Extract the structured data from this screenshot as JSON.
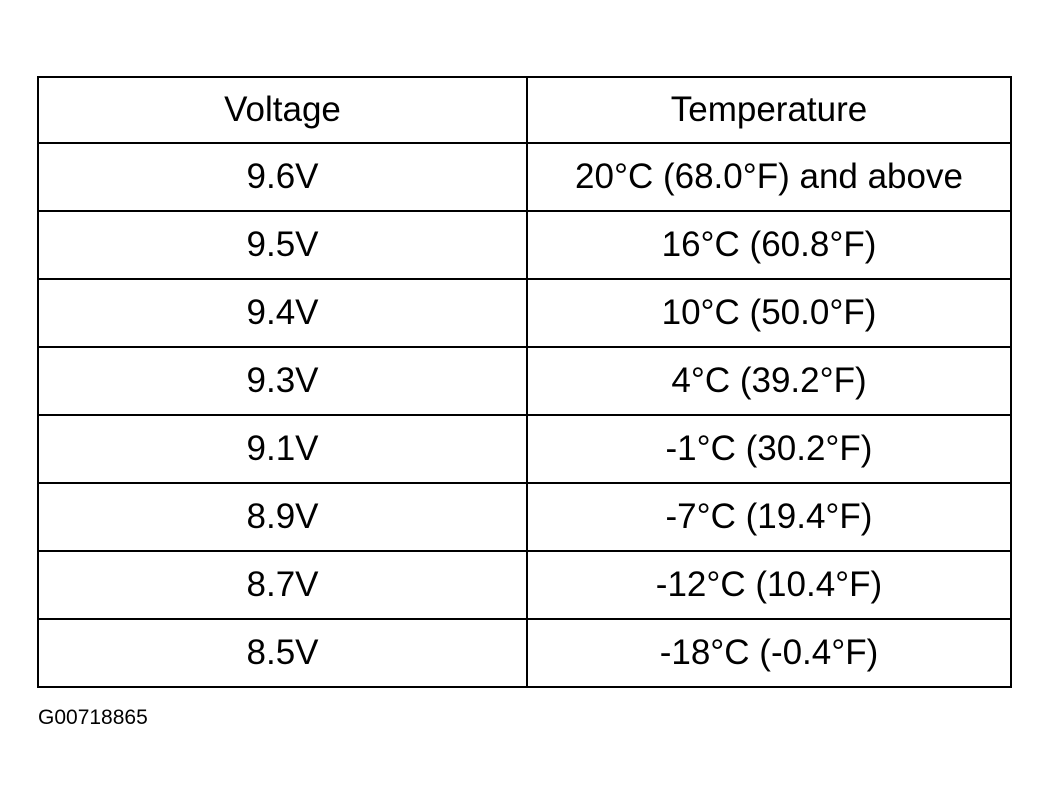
{
  "table": {
    "header": [
      "Voltage",
      "Temperature"
    ],
    "rows": [
      [
        "9.6V",
        "20°C (68.0°F) and above"
      ],
      [
        "9.5V",
        "16°C (60.8°F)"
      ],
      [
        "9.4V",
        "10°C (50.0°F)"
      ],
      [
        "9.3V",
        "4°C (39.2°F)"
      ],
      [
        "9.1V",
        "-1°C (30.2°F)"
      ],
      [
        "8.9V",
        "-7°C (19.4°F)"
      ],
      [
        "8.7V",
        "-12°C (10.4°F)"
      ],
      [
        "8.5V",
        "-18°C (-0.4°F)"
      ]
    ]
  },
  "figure_id": "G00718865"
}
